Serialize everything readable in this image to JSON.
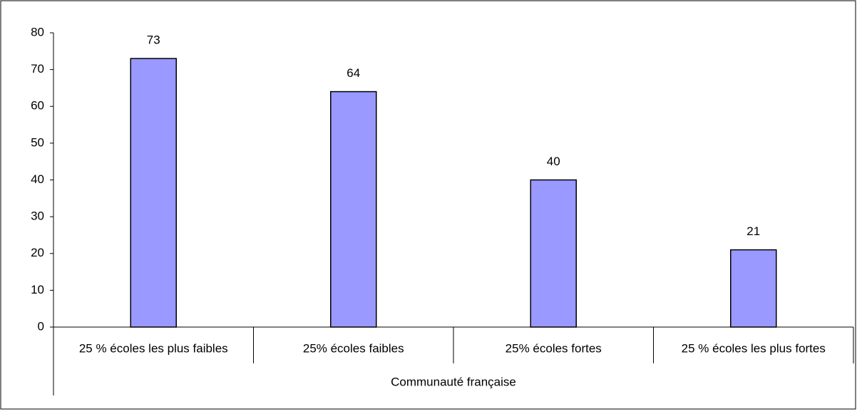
{
  "chart_data": {
    "type": "bar",
    "categories": [
      "25 % écoles les plus faibles",
      "25% écoles faibles",
      "25% écoles fortes",
      "25 % écoles les plus fortes"
    ],
    "group_label": "Communauté française",
    "values": [
      73,
      64,
      40,
      21
    ],
    "color": "#9999ff",
    "ylim": [
      0,
      80
    ],
    "yticks": [
      0,
      10,
      20,
      30,
      40,
      50,
      60,
      70,
      80
    ],
    "grid": false
  }
}
